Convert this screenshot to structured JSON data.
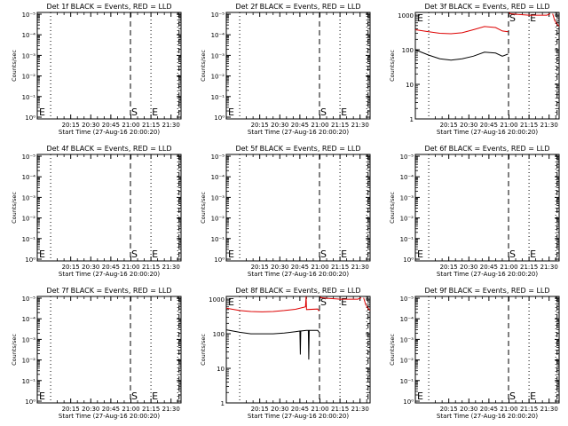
{
  "figure": {
    "x_tick_labels": [
      "20:15",
      "20:30",
      "20:45",
      "21:00",
      "21:15",
      "21:30"
    ],
    "x_tick_times_sec": [
      900,
      1800,
      2700,
      3600,
      4500,
      5400
    ],
    "x_range_sec": [
      -600,
      5850
    ],
    "xlabel": "Start Time (27-Aug-16 20:00:20)",
    "ylabel": "Counts/sec",
    "dotted_lines_sec": [
      0,
      4500,
      5700
    ],
    "dashed_lines_sec": [
      3580,
      5760
    ],
    "markers": [
      {
        "label": "S",
        "time_sec": 3580
      },
      {
        "label": "E",
        "time_sec": 4500
      }
    ],
    "start_marker_label": "E",
    "colors": {
      "events": "#000000",
      "lld": "#dd0000"
    }
  },
  "chart_data": [
    {
      "type": "line",
      "title": "Det 1f BLACK = Events, RED = LLD",
      "log_scale": true,
      "y_tick_labels": [
        "10⁰",
        "10⁻¹",
        "10⁻²",
        "10⁻³",
        "10⁻⁴",
        "10⁻⁵"
      ],
      "series": []
    },
    {
      "type": "line",
      "title": "Det 2f BLACK = Events, RED = LLD",
      "log_scale": true,
      "y_tick_labels": [
        "10⁰",
        "10⁻¹",
        "10⁻²",
        "10⁻³",
        "10⁻⁴",
        "10⁻⁵"
      ],
      "series": []
    },
    {
      "type": "line",
      "title": "Det 3f BLACK = Events, RED = LLD",
      "log_scale": true,
      "y_tick_labels": [
        "1",
        "10",
        "100",
        "1000"
      ],
      "ylim": [
        1,
        1200
      ],
      "series": [
        {
          "color": "#dd0000",
          "x": [
            -600,
            0,
            500,
            1000,
            1500,
            2000,
            2500,
            3000,
            3300,
            3560
          ],
          "y": [
            380,
            330,
            300,
            290,
            310,
            380,
            470,
            440,
            350,
            330
          ]
        },
        {
          "color": "#000000",
          "x": [
            -600,
            0,
            500,
            1000,
            1500,
            2000,
            2500,
            3000,
            3300,
            3560
          ],
          "y": [
            100,
            70,
            55,
            50,
            55,
            65,
            85,
            80,
            65,
            75
          ]
        },
        {
          "color": "#dd0000",
          "x": [
            3620,
            3650,
            4000,
            4500,
            5000,
            5300,
            5450
          ],
          "y": [
            1200,
            1100,
            1050,
            1000,
            1000,
            1000,
            1100
          ]
        },
        {
          "color": "#dd0000",
          "x": [
            5560,
            5650,
            5750,
            5850
          ],
          "y": [
            1100,
            700,
            550,
            480
          ]
        }
      ]
    },
    {
      "type": "line",
      "title": "Det 4f BLACK = Events, RED = LLD",
      "log_scale": true,
      "y_tick_labels": [
        "10⁰",
        "10⁻¹",
        "10⁻²",
        "10⁻³",
        "10⁻⁴",
        "10⁻⁵"
      ],
      "series": []
    },
    {
      "type": "line",
      "title": "Det 5f BLACK = Events, RED = LLD",
      "log_scale": true,
      "y_tick_labels": [
        "10⁰",
        "10⁻¹",
        "10⁻²",
        "10⁻³",
        "10⁻⁴",
        "10⁻⁵"
      ],
      "series": []
    },
    {
      "type": "line",
      "title": "Det 6f BLACK = Events, RED = LLD",
      "log_scale": true,
      "y_tick_labels": [
        "10⁰",
        "10⁻¹",
        "10⁻²",
        "10⁻³",
        "10⁻⁴",
        "10⁻⁵"
      ],
      "series": []
    },
    {
      "type": "line",
      "title": "Det 7f BLACK = Events, RED = LLD",
      "log_scale": true,
      "y_tick_labels": [
        "10⁰",
        "10⁻¹",
        "10⁻²",
        "10⁻³",
        "10⁻⁴",
        "10⁻⁵"
      ],
      "series": []
    },
    {
      "type": "line",
      "title": "Det 8f BLACK = Events, RED = LLD",
      "log_scale": true,
      "y_tick_labels": [
        "1",
        "10",
        "100",
        "1000"
      ],
      "ylim": [
        1,
        1200
      ],
      "series": [
        {
          "color": "#dd0000",
          "x": [
            -600,
            0,
            500,
            1000,
            1500,
            2000,
            2500,
            2950,
            2980,
            3000,
            3500,
            3560
          ],
          "y": [
            550,
            470,
            440,
            430,
            440,
            470,
            510,
            600,
            1200,
            500,
            520,
            450
          ]
        },
        {
          "color": "#000000",
          "x": [
            -600,
            0,
            500,
            1000,
            1500,
            2000,
            2500,
            2700,
            2720,
            2740,
            3000,
            3080,
            3100,
            3120,
            3500,
            3560
          ],
          "y": [
            130,
            110,
            100,
            100,
            100,
            105,
            115,
            120,
            25,
            120,
            125,
            125,
            18,
            125,
            125,
            110
          ]
        },
        {
          "color": "#dd0000",
          "x": [
            3620,
            3650,
            4000,
            4500,
            5000,
            5300,
            5450
          ],
          "y": [
            1200,
            1100,
            1050,
            1000,
            1000,
            1000,
            1100
          ]
        },
        {
          "color": "#dd0000",
          "x": [
            5560,
            5650,
            5750,
            5850
          ],
          "y": [
            1100,
            700,
            550,
            480
          ]
        }
      ]
    },
    {
      "type": "line",
      "title": "Det 9f BLACK = Events, RED = LLD",
      "log_scale": true,
      "y_tick_labels": [
        "10⁰",
        "10⁻¹",
        "10⁻²",
        "10⁻³",
        "10⁻⁴",
        "10⁻⁵"
      ],
      "series": []
    }
  ]
}
